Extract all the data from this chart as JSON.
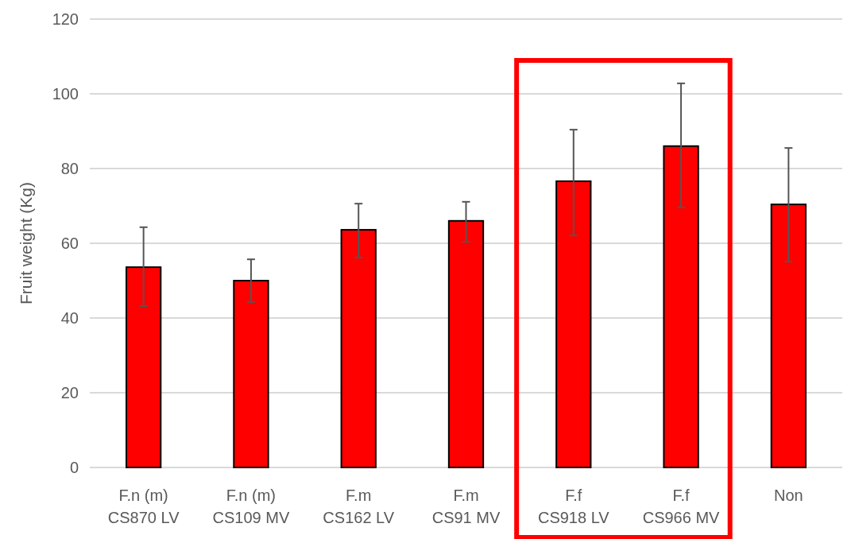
{
  "chart_data": {
    "type": "bar",
    "ylabel": "Fruit weight (Kg)",
    "categories": [
      "F.n (m)\nCS870 LV",
      "F.n (m)\nCS109 MV",
      "F.m\nCS162 LV",
      "F.m\nCS91 MV",
      "F.f\nCS918 LV",
      "F.f\nCS966 MV",
      "Non"
    ],
    "values": [
      53.6,
      50,
      63.6,
      66,
      76.6,
      86,
      70.4
    ],
    "errors": [
      [
        43.2,
        64.3
      ],
      [
        44.3,
        55.7
      ],
      [
        56.2,
        70.6
      ],
      [
        60.4,
        71.1
      ],
      [
        62.1,
        90.4
      ],
      [
        69.6,
        102.8
      ],
      [
        55.1,
        85.5
      ]
    ],
    "color": "#ff0000",
    "ylim": [
      0,
      120
    ],
    "yticks": [
      0,
      20,
      40,
      60,
      80,
      100,
      120
    ],
    "grid": "y"
  }
}
